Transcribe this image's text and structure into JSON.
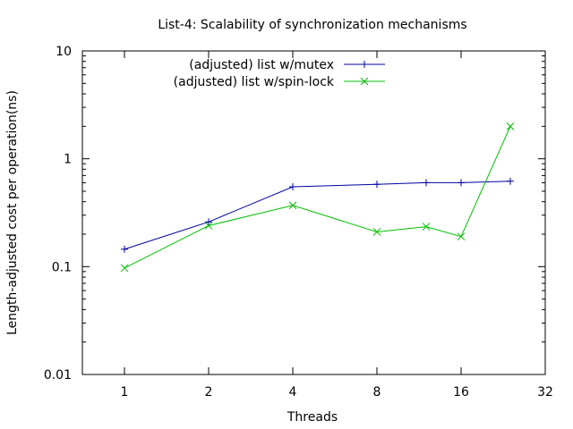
{
  "chart_data": {
    "type": "line",
    "title": "List-4: Scalability of synchronization mechanisms",
    "xlabel": "Threads",
    "ylabel": "Length-adjusted cost per operation(ns)",
    "x_scale": "log2",
    "y_scale": "log10",
    "xlim": [
      0.707,
      32
    ],
    "ylim": [
      0.01,
      10
    ],
    "x_ticks": [
      1,
      2,
      4,
      8,
      16,
      32
    ],
    "x_tick_labels": [
      "1",
      "2",
      "4",
      "8",
      "16",
      "32"
    ],
    "y_ticks": [
      0.01,
      0.1,
      1,
      10
    ],
    "y_tick_labels": [
      "0.01",
      "0.1",
      "1",
      "10"
    ],
    "grid": false,
    "legend_position": "top-center",
    "series": [
      {
        "name": "(adjusted) list w/mutex",
        "color": "#0000a0",
        "marker": "plus",
        "x": [
          1,
          2,
          4,
          8,
          12,
          16,
          24
        ],
        "y": [
          0.145,
          0.26,
          0.55,
          0.58,
          0.6,
          0.6,
          0.62
        ]
      },
      {
        "name": "(adjusted) list w/spin-lock",
        "color": "#00c000",
        "marker": "cross",
        "x": [
          1,
          2,
          4,
          8,
          12,
          16,
          24
        ],
        "y": [
          0.097,
          0.24,
          0.37,
          0.21,
          0.235,
          0.19,
          2.0
        ]
      }
    ]
  }
}
